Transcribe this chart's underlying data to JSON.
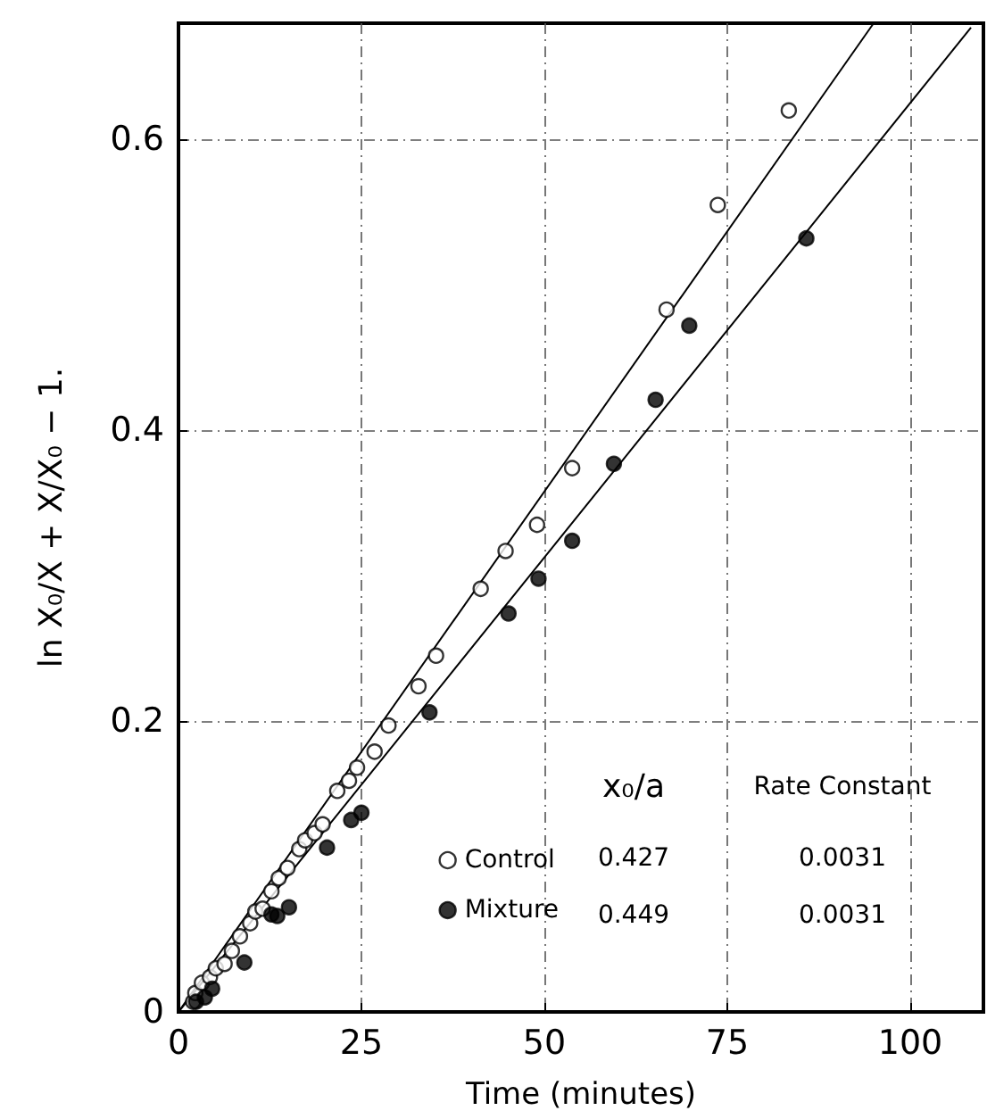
{
  "chart_data": {
    "type": "scatter",
    "xlabel": "Time (minutes)",
    "ylabel": "ln X₀/X + X/X₀ − 1.",
    "xlim": [
      0,
      110
    ],
    "xticks": [
      0,
      25,
      50,
      75,
      100
    ],
    "ylim": [
      0,
      0.68
    ],
    "yticks": [
      0,
      0.2,
      0.4,
      0.6
    ],
    "grid": true,
    "legend": "bottom",
    "marker": "circle",
    "series": [
      {
        "name": "Control",
        "color": "#ffffff",
        "x": [
          2,
          2.3,
          3.2,
          4.3,
          5.1,
          6.3,
          7.3,
          8.4,
          9.8,
          10.5,
          11.5,
          12.7,
          13.7,
          14.9,
          16.5,
          17.3,
          18.6,
          19.7,
          21.7,
          23.3,
          24.4,
          26.8,
          28.7,
          32.8,
          35.2,
          41.3,
          44.7,
          49,
          53.8,
          66.7,
          73.7,
          83.4
        ],
        "values": [
          0.007,
          0.013,
          0.02,
          0.024,
          0.03,
          0.033,
          0.042,
          0.052,
          0.061,
          0.069,
          0.071,
          0.083,
          0.092,
          0.099,
          0.112,
          0.118,
          0.123,
          0.129,
          0.152,
          0.159,
          0.168,
          0.179,
          0.197,
          0.224,
          0.245,
          0.291,
          0.317,
          0.335,
          0.374,
          0.483,
          0.555,
          0.62
        ]
      },
      {
        "name": "Mixture",
        "color": "#000000",
        "x": [
          2.4,
          3.6,
          4.6,
          9,
          12.7,
          13.5,
          15.1,
          20.3,
          23.6,
          25,
          34.3,
          45.1,
          49.2,
          53.8,
          59.5,
          65.2,
          69.8,
          85.8
        ],
        "values": [
          0.007,
          0.01,
          0.016,
          0.034,
          0.067,
          0.066,
          0.072,
          0.113,
          0.132,
          0.137,
          0.206,
          0.274,
          0.298,
          0.324,
          0.377,
          0.421,
          0.472,
          0.532
        ]
      },
      {
        "type": "line",
        "color": "#000000",
        "marker": "none",
        "x": [
          0,
          95
        ],
        "values": [
          0,
          0.68
        ]
      },
      {
        "type": "line",
        "color": "#000000",
        "marker": "none",
        "x": [
          0,
          108.3
        ],
        "values": [
          0,
          0.677
        ]
      }
    ],
    "annotations": [
      "x₀/a",
      "Rate Constant",
      "0.427",
      "0.0031",
      "0.449",
      "0.0031"
    ]
  }
}
